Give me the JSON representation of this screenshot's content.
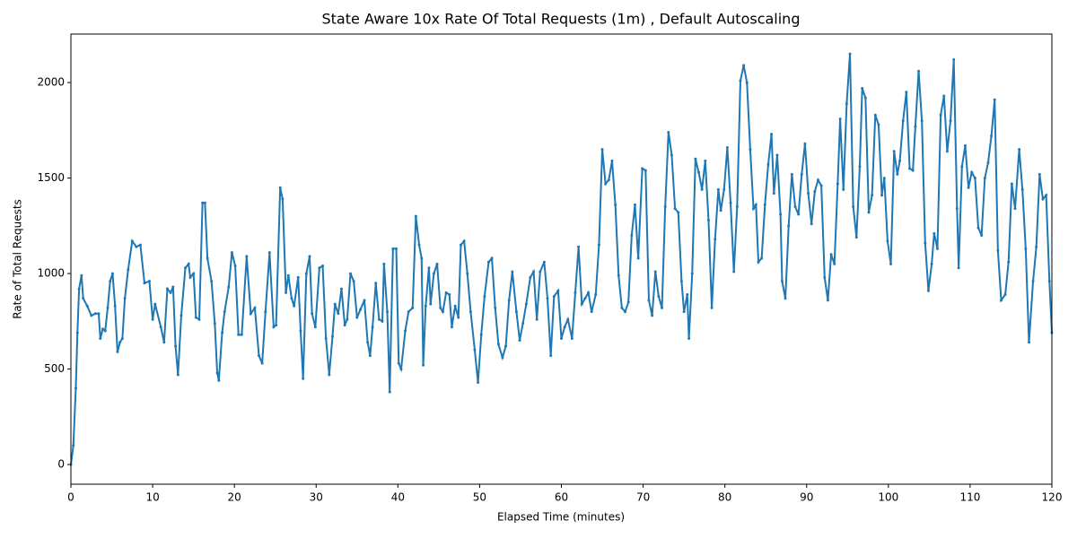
{
  "chart_data": {
    "type": "line",
    "title": "State Aware 10x Rate Of Total Requests (1m) , Default Autoscaling",
    "x_label": "Elapsed Time (minutes)",
    "y_label": "Rate of Total Requests",
    "color": "#1f77b4",
    "xlim": [
      0,
      120
    ],
    "xticks": [
      0,
      10,
      20,
      30,
      40,
      50,
      60,
      70,
      80,
      90,
      100,
      110,
      120
    ],
    "ylim": [
      -103,
      2254
    ],
    "yticks": [
      0,
      500,
      1000,
      1500,
      2000
    ],
    "x": [
      0,
      0.3,
      0.6,
      0.8,
      1.0,
      1.3,
      1.5,
      2.0,
      2.5,
      3.0,
      3.4,
      3.6,
      3.9,
      4.2,
      4.5,
      4.8,
      5.1,
      5.4,
      5.7,
      6.0,
      6.3,
      6.6,
      7.0,
      7.5,
      8.0,
      8.5,
      9.0,
      9.6,
      10.0,
      10.3,
      11.0,
      11.4,
      11.8,
      12.2,
      12.5,
      12.8,
      13.1,
      13.5,
      14.0,
      14.4,
      14.6,
      15.0,
      15.3,
      15.7,
      16.1,
      16.4,
      16.7,
      17.2,
      17.6,
      17.9,
      18.1,
      18.5,
      18.8,
      19.3,
      19.7,
      20.1,
      20.5,
      20.9,
      21.5,
      22.0,
      22.5,
      23.0,
      23.4,
      23.8,
      24.3,
      24.8,
      25.1,
      25.6,
      25.9,
      26.3,
      26.6,
      27.0,
      27.3,
      27.8,
      28.1,
      28.4,
      28.8,
      29.2,
      29.5,
      29.9,
      30.4,
      30.8,
      31.2,
      31.6,
      32.0,
      32.3,
      32.7,
      33.1,
      33.5,
      33.8,
      34.2,
      34.6,
      35.0,
      35.4,
      35.9,
      36.3,
      36.6,
      36.9,
      37.3,
      37.7,
      38.1,
      38.3,
      38.7,
      39.0,
      39.4,
      39.8,
      40.1,
      40.4,
      40.9,
      41.3,
      41.8,
      42.2,
      42.6,
      42.9,
      43.1,
      43.4,
      43.8,
      44.0,
      44.4,
      44.8,
      45.2,
      45.5,
      45.9,
      46.3,
      46.6,
      47.0,
      47.4,
      47.7,
      48.1,
      48.5,
      48.9,
      49.4,
      49.8,
      50.2,
      50.6,
      51.1,
      51.5,
      51.9,
      52.3,
      52.8,
      53.2,
      53.6,
      54.0,
      54.5,
      54.9,
      55.3,
      55.7,
      56.2,
      56.6,
      57.0,
      57.4,
      57.9,
      58.3,
      58.7,
      59.1,
      59.6,
      60.0,
      60.4,
      60.8,
      61.3,
      61.7,
      62.1,
      62.5,
      62.9,
      63.3,
      63.7,
      64.2,
      64.6,
      65.0,
      65.4,
      65.8,
      66.2,
      66.6,
      67.0,
      67.4,
      67.8,
      68.2,
      68.6,
      69.0,
      69.4,
      69.9,
      70.3,
      70.7,
      71.1,
      71.5,
      71.9,
      72.3,
      72.7,
      73.1,
      73.5,
      73.9,
      74.3,
      74.7,
      75.0,
      75.4,
      75.6,
      76.0,
      76.4,
      76.8,
      77.2,
      77.6,
      78.0,
      78.4,
      78.8,
      79.2,
      79.5,
      79.9,
      80.3,
      80.7,
      81.1,
      81.5,
      81.9,
      82.3,
      82.7,
      83.1,
      83.5,
      83.8,
      84.1,
      84.5,
      84.9,
      85.3,
      85.7,
      86.0,
      86.4,
      86.8,
      87.0,
      87.4,
      87.8,
      88.2,
      88.6,
      89.0,
      89.4,
      89.8,
      90.2,
      90.6,
      91.0,
      91.4,
      91.8,
      92.2,
      92.6,
      93.0,
      93.4,
      93.8,
      94.1,
      94.5,
      94.9,
      95.3,
      95.7,
      96.1,
      96.5,
      96.8,
      97.2,
      97.6,
      98.0,
      98.4,
      98.8,
      99.2,
      99.5,
      99.9,
      100.3,
      100.7,
      101.1,
      101.4,
      101.8,
      102.2,
      102.6,
      103.0,
      103.3,
      103.7,
      104.1,
      104.5,
      104.9,
      105.3,
      105.6,
      106.0,
      106.4,
      106.8,
      107.2,
      107.6,
      108.0,
      108.4,
      108.6,
      109.0,
      109.4,
      109.8,
      110.2,
      110.6,
      111.0,
      111.4,
      111.8,
      112.2,
      112.6,
      113.0,
      113.4,
      113.8,
      114.3,
      114.7,
      115.1,
      115.5,
      116.0,
      116.4,
      116.8,
      117.2,
      117.7,
      118.1,
      118.5,
      118.9,
      119.3,
      119.7,
      120.0
    ],
    "values": [
      0,
      100,
      400,
      690,
      920,
      990,
      870,
      830,
      780,
      790,
      790,
      660,
      710,
      700,
      820,
      960,
      1000,
      830,
      590,
      640,
      660,
      870,
      1020,
      1170,
      1140,
      1150,
      950,
      960,
      760,
      840,
      720,
      640,
      920,
      900,
      930,
      620,
      470,
      780,
      1030,
      1050,
      980,
      1000,
      770,
      760,
      1370,
      1370,
      1080,
      960,
      740,
      480,
      440,
      690,
      800,
      930,
      1110,
      1040,
      680,
      680,
      1090,
      790,
      820,
      570,
      530,
      800,
      1110,
      720,
      730,
      1450,
      1390,
      900,
      990,
      870,
      830,
      980,
      700,
      450,
      1000,
      1090,
      790,
      720,
      1030,
      1040,
      660,
      470,
      670,
      840,
      790,
      920,
      730,
      760,
      1000,
      960,
      770,
      810,
      860,
      640,
      570,
      720,
      950,
      760,
      750,
      1050,
      800,
      380,
      1130,
      1130,
      530,
      500,
      700,
      800,
      820,
      1300,
      1150,
      1080,
      520,
      830,
      1030,
      840,
      1000,
      1050,
      820,
      800,
      900,
      890,
      720,
      830,
      770,
      1150,
      1170,
      1000,
      800,
      600,
      430,
      680,
      880,
      1060,
      1080,
      820,
      630,
      560,
      620,
      860,
      1010,
      800,
      650,
      740,
      840,
      980,
      1010,
      760,
      1010,
      1060,
      870,
      570,
      880,
      910,
      660,
      720,
      760,
      660,
      900,
      1140,
      840,
      870,
      900,
      800,
      890,
      1150,
      1650,
      1470,
      1490,
      1590,
      1360,
      990,
      820,
      800,
      850,
      1200,
      1360,
      1080,
      1550,
      1540,
      860,
      780,
      1010,
      880,
      820,
      1350,
      1740,
      1620,
      1340,
      1320,
      960,
      800,
      890,
      660,
      1000,
      1600,
      1530,
      1440,
      1590,
      1280,
      820,
      1180,
      1440,
      1330,
      1440,
      1660,
      1370,
      1010,
      1350,
      2010,
      2090,
      2000,
      1650,
      1340,
      1360,
      1060,
      1080,
      1360,
      1570,
      1730,
      1420,
      1620,
      1310,
      960,
      870,
      1250,
      1520,
      1350,
      1310,
      1520,
      1680,
      1420,
      1260,
      1430,
      1490,
      1460,
      980,
      860,
      1100,
      1050,
      1470,
      1810,
      1440,
      1890,
      2150,
      1350,
      1190,
      1560,
      1970,
      1920,
      1320,
      1410,
      1830,
      1780,
      1410,
      1500,
      1170,
      1050,
      1640,
      1520,
      1590,
      1800,
      1950,
      1550,
      1540,
      1770,
      2060,
      1800,
      1160,
      910,
      1050,
      1210,
      1130,
      1830,
      1930,
      1640,
      1800,
      2120,
      1340,
      1030,
      1560,
      1670,
      1450,
      1530,
      1500,
      1240,
      1200,
      1500,
      1580,
      1720,
      1910,
      1120,
      860,
      890,
      1060,
      1470,
      1340,
      1650,
      1440,
      1130,
      640,
      960,
      1140,
      1520,
      1390,
      1410,
      960,
      690
    ]
  }
}
